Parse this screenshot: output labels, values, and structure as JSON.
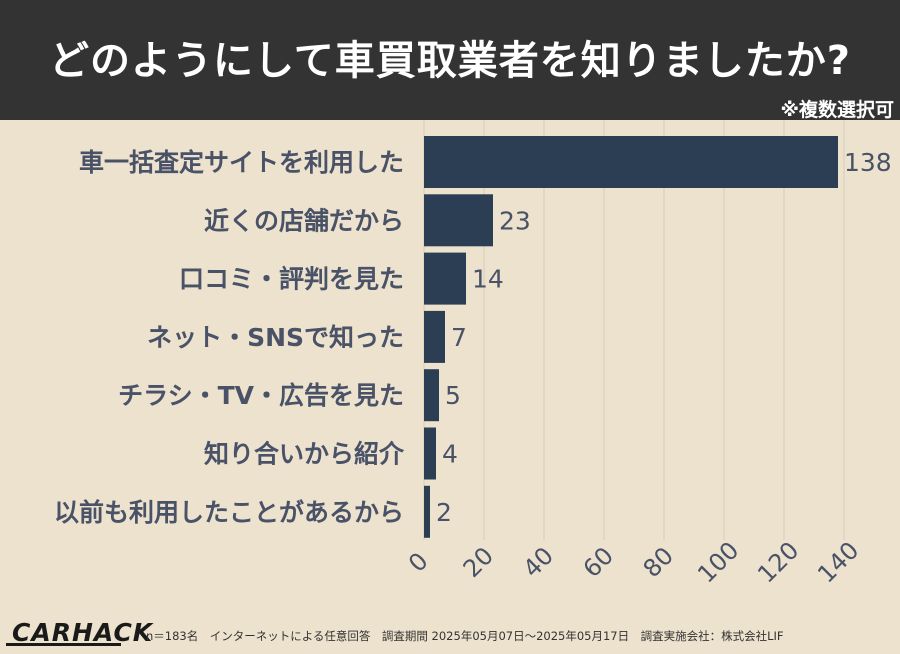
{
  "header": {
    "title": "どのようにして車買取業者を知りましたか?",
    "note": "※複数選択可"
  },
  "footer": {
    "logo": "CARHACK",
    "footnote": "n＝183名　インターネットによる任意回答　調査期間 2025年05月07日～2025年05月17日　調査実施会社：株式会社LIF"
  },
  "colors": {
    "bar": "#2b3e54",
    "background": "#ece2cd",
    "header": "#333333",
    "grid": "#d6ccb8",
    "label": "#4a5268"
  },
  "chart_data": {
    "type": "bar",
    "orientation": "horizontal",
    "categories": [
      "車一括査定サイトを利用した",
      "近くの店舗だから",
      "口コミ・評判を見た",
      "ネット・SNSで知った",
      "チラシ・TV・広告を見た",
      "知り合いから紹介",
      "以前も利用したことがあるから"
    ],
    "values": [
      138,
      23,
      14,
      7,
      5,
      4,
      2
    ],
    "xlim": [
      0,
      140
    ],
    "xticks": [
      0,
      20,
      40,
      60,
      80,
      100,
      120,
      140
    ],
    "grid": true,
    "legend": "none",
    "data_labels": true
  }
}
